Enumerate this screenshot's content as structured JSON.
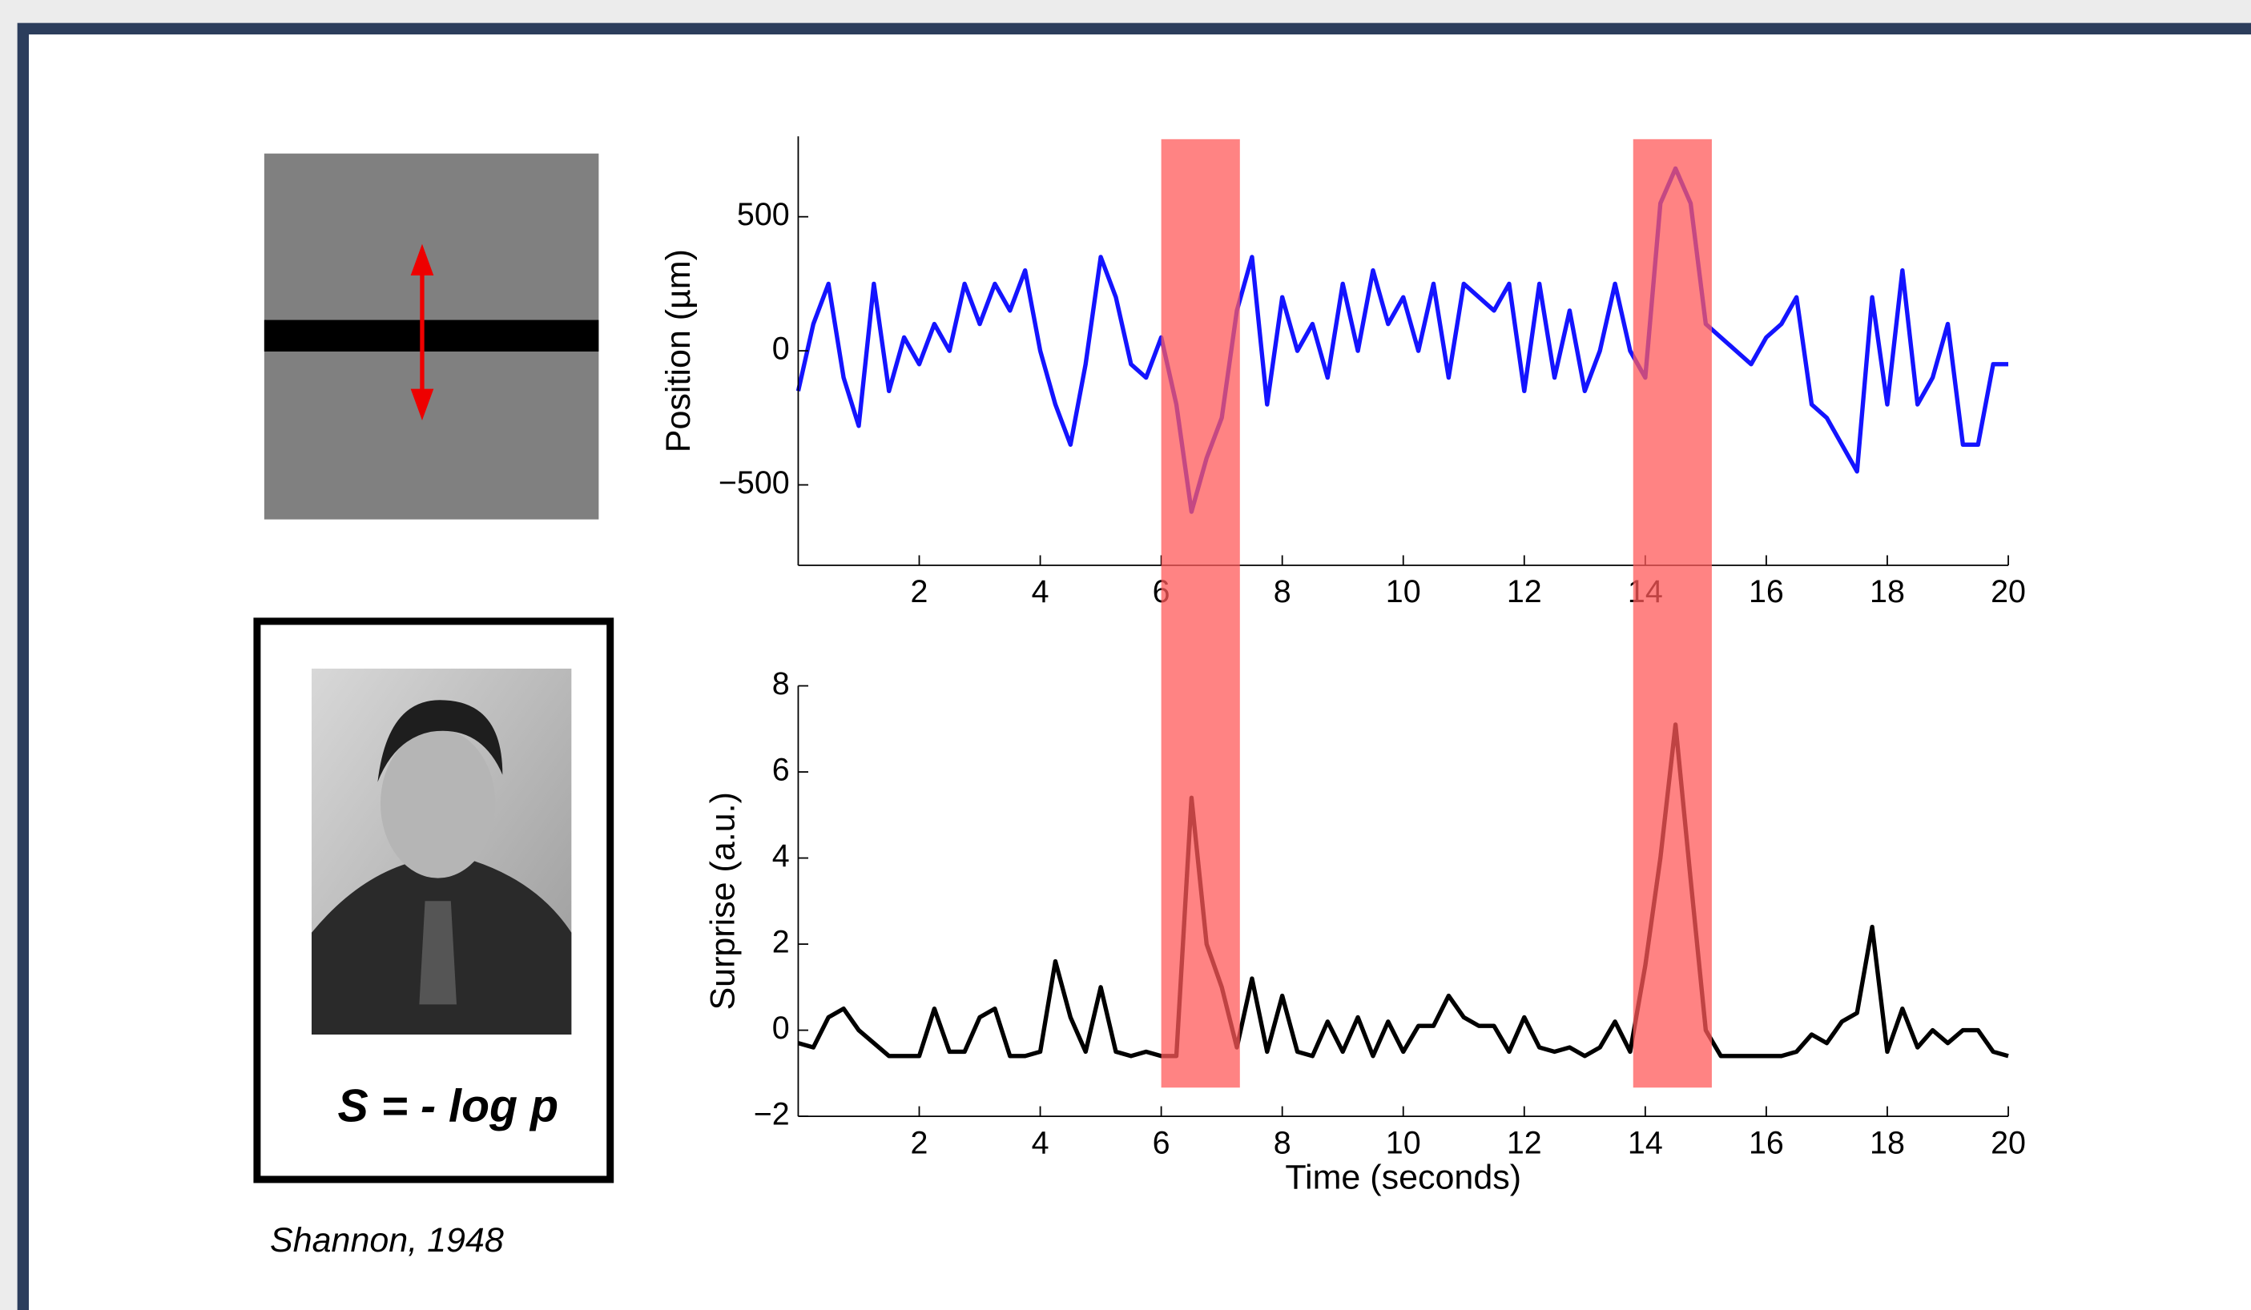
{
  "chart_data": [
    {
      "type": "line",
      "ylabel": "Position (µm)",
      "color": "#1414ff",
      "xlim": [
        0,
        20
      ],
      "ylim": [
        -800,
        800
      ],
      "xticks": [
        2,
        4,
        6,
        8,
        10,
        12,
        14,
        16,
        18,
        20
      ],
      "yticks": [
        {
          "value": -500,
          "label": "−500"
        },
        0,
        500
      ],
      "x": [
        0,
        0.25,
        0.5,
        0.75,
        1,
        1.25,
        1.5,
        1.75,
        2,
        2.25,
        2.5,
        2.75,
        3,
        3.25,
        3.5,
        3.75,
        4,
        4.25,
        4.5,
        4.75,
        5,
        5.25,
        5.5,
        5.75,
        6,
        6.25,
        6.5,
        6.75,
        7,
        7.25,
        7.5,
        7.75,
        8,
        8.25,
        8.5,
        8.75,
        9,
        9.25,
        9.5,
        9.75,
        10,
        10.25,
        10.5,
        10.75,
        11,
        11.25,
        11.5,
        11.75,
        12,
        12.25,
        12.5,
        12.75,
        13,
        13.25,
        13.5,
        13.75,
        14,
        14.25,
        14.5,
        14.75,
        15,
        15.25,
        15.5,
        15.75,
        16,
        16.25,
        16.5,
        16.75,
        17,
        17.25,
        17.5,
        17.75,
        18,
        18.25,
        18.5,
        18.75,
        19,
        19.25,
        19.5,
        19.75,
        20
      ],
      "values": [
        -150,
        100,
        250,
        -100,
        -280,
        250,
        -150,
        50,
        -50,
        100,
        0,
        250,
        100,
        250,
        150,
        300,
        0,
        -200,
        -350,
        -50,
        350,
        200,
        -50,
        -100,
        50,
        -200,
        -600,
        -400,
        -250,
        150,
        350,
        -200,
        200,
        0,
        100,
        -100,
        250,
        0,
        300,
        100,
        200,
        0,
        250,
        -100,
        250,
        200,
        150,
        250,
        -150,
        250,
        -100,
        150,
        -150,
        0,
        250,
        0,
        -100,
        550,
        680,
        550,
        100,
        50,
        0,
        -50,
        50,
        100,
        200,
        -200,
        -250,
        -350,
        -450,
        200,
        -200,
        300,
        -200,
        -100,
        100,
        -350,
        -350,
        -50,
        -50
      ]
    },
    {
      "type": "line",
      "xlabel": "Time (seconds)",
      "ylabel": "Surprise (a.u.)",
      "color": "#000000",
      "xlim": [
        0,
        20
      ],
      "ylim": [
        -2,
        8
      ],
      "xticks": [
        2,
        4,
        6,
        8,
        10,
        12,
        14,
        16,
        18,
        20
      ],
      "yticks": [
        {
          "value": -2,
          "label": "−2"
        },
        0,
        2,
        4,
        6,
        8
      ],
      "x": [
        0,
        0.25,
        0.5,
        0.75,
        1,
        1.25,
        1.5,
        1.75,
        2,
        2.25,
        2.5,
        2.75,
        3,
        3.25,
        3.5,
        3.75,
        4,
        4.25,
        4.5,
        4.75,
        5,
        5.25,
        5.5,
        5.75,
        6,
        6.25,
        6.5,
        6.75,
        7,
        7.25,
        7.5,
        7.75,
        8,
        8.25,
        8.5,
        8.75,
        9,
        9.25,
        9.5,
        9.75,
        10,
        10.25,
        10.5,
        10.75,
        11,
        11.25,
        11.5,
        11.75,
        12,
        12.25,
        12.5,
        12.75,
        13,
        13.25,
        13.5,
        13.75,
        14,
        14.25,
        14.5,
        14.75,
        15,
        15.25,
        15.5,
        15.75,
        16,
        16.25,
        16.5,
        16.75,
        17,
        17.25,
        17.5,
        17.75,
        18,
        18.25,
        18.5,
        18.75,
        19,
        19.25,
        19.5,
        19.75,
        20
      ],
      "values": [
        -0.3,
        -0.4,
        0.3,
        0.5,
        0,
        -0.3,
        -0.6,
        -0.6,
        -0.6,
        0.5,
        -0.5,
        -0.5,
        0.3,
        0.5,
        -0.6,
        -0.6,
        -0.5,
        1.6,
        0.3,
        -0.5,
        1,
        -0.5,
        -0.6,
        -0.5,
        -0.6,
        -0.6,
        5.4,
        2,
        1,
        -0.4,
        1.2,
        -0.5,
        0.8,
        -0.5,
        -0.6,
        0.2,
        -0.5,
        0.3,
        -0.6,
        0.2,
        -0.5,
        0.1,
        0.1,
        0.8,
        0.3,
        0.1,
        0.1,
        -0.5,
        0.3,
        -0.4,
        -0.5,
        -0.4,
        -0.6,
        -0.4,
        0.2,
        -0.5,
        1.5,
        4,
        7.1,
        3.5,
        0,
        -0.6,
        -0.6,
        -0.6,
        -0.6,
        -0.6,
        -0.5,
        -0.1,
        -0.3,
        0.2,
        0.4,
        2.4,
        -0.5,
        0.5,
        -0.4,
        0,
        -0.3,
        0,
        0,
        -0.5,
        -0.6
      ]
    }
  ],
  "highlights": {
    "color": "#ff5a5a",
    "ranges": [
      [
        6,
        7.3
      ],
      [
        13.8,
        15.1
      ]
    ]
  },
  "formula": "S = - log p",
  "citation": "Shannon, 1948"
}
